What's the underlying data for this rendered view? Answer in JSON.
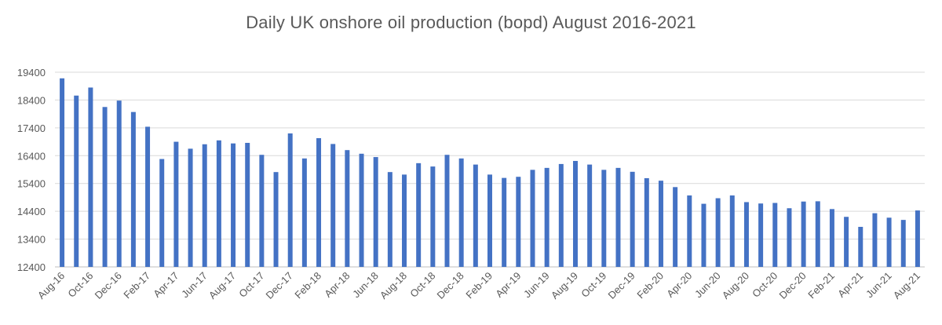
{
  "chart_data": {
    "type": "bar",
    "title": "Daily UK onshore oil production (bopd) August 2016-2021",
    "xlabel": "",
    "ylabel": "",
    "ylim": [
      12400,
      19400
    ],
    "yticks": [
      12400,
      13400,
      14400,
      15400,
      16400,
      17400,
      18400,
      19400
    ],
    "grid": true,
    "legend": "none",
    "bar_color": "#4472C4",
    "grid_color": "#d9d9d9",
    "axis_color": "#bfbfbf",
    "label_color": "#595959",
    "x_tick_labels": [
      "Aug-16",
      "Oct-16",
      "Dec-16",
      "Feb-17",
      "Apr-17",
      "Jun-17",
      "Aug-17",
      "Oct-17",
      "Dec-17",
      "Feb-18",
      "Apr-18",
      "Jun-18",
      "Aug-18",
      "Oct-18",
      "Dec-18",
      "Feb-19",
      "Apr-19",
      "Jun-19",
      "Aug-19",
      "Oct-19",
      "Dec-19",
      "Feb-20",
      "Apr-20",
      "Jun-20",
      "Aug-20",
      "Oct-20",
      "Dec-20",
      "Feb-21",
      "Apr-21",
      "Jun-21",
      "Aug-21"
    ],
    "categories": [
      "Aug-16",
      "Sep-16",
      "Oct-16",
      "Nov-16",
      "Dec-16",
      "Jan-17",
      "Feb-17",
      "Mar-17",
      "Apr-17",
      "May-17",
      "Jun-17",
      "Jul-17",
      "Aug-17",
      "Sep-17",
      "Oct-17",
      "Nov-17",
      "Dec-17",
      "Jan-18",
      "Feb-18",
      "Mar-18",
      "Apr-18",
      "May-18",
      "Jun-18",
      "Jul-18",
      "Aug-18",
      "Sep-18",
      "Oct-18",
      "Nov-18",
      "Dec-18",
      "Jan-19",
      "Feb-19",
      "Mar-19",
      "Apr-19",
      "May-19",
      "Jun-19",
      "Jul-19",
      "Aug-19",
      "Sep-19",
      "Oct-19",
      "Nov-19",
      "Dec-19",
      "Jan-20",
      "Feb-20",
      "Mar-20",
      "Apr-20",
      "May-20",
      "Jun-20",
      "Jul-20",
      "Aug-20",
      "Sep-20",
      "Oct-20",
      "Nov-20",
      "Dec-20",
      "Jan-21",
      "Feb-21",
      "Mar-21",
      "Apr-21",
      "May-21",
      "Jun-21",
      "Jul-21",
      "Aug-21"
    ],
    "values": [
      19180,
      18560,
      18850,
      18150,
      18380,
      17970,
      17440,
      16280,
      16900,
      16650,
      16810,
      16950,
      16840,
      16860,
      16430,
      15810,
      17200,
      16300,
      17030,
      16820,
      16600,
      16470,
      16350,
      15810,
      15720,
      16130,
      16010,
      16430,
      16300,
      16080,
      15720,
      15600,
      15640,
      15890,
      15960,
      16100,
      16210,
      16080,
      15890,
      15960,
      15820,
      15590,
      15500,
      15270,
      14970,
      14670,
      14870,
      14970,
      14730,
      14680,
      14700,
      14510,
      14750,
      14760,
      14480,
      14200,
      13840,
      14330,
      14170,
      14090,
      14430
    ]
  }
}
